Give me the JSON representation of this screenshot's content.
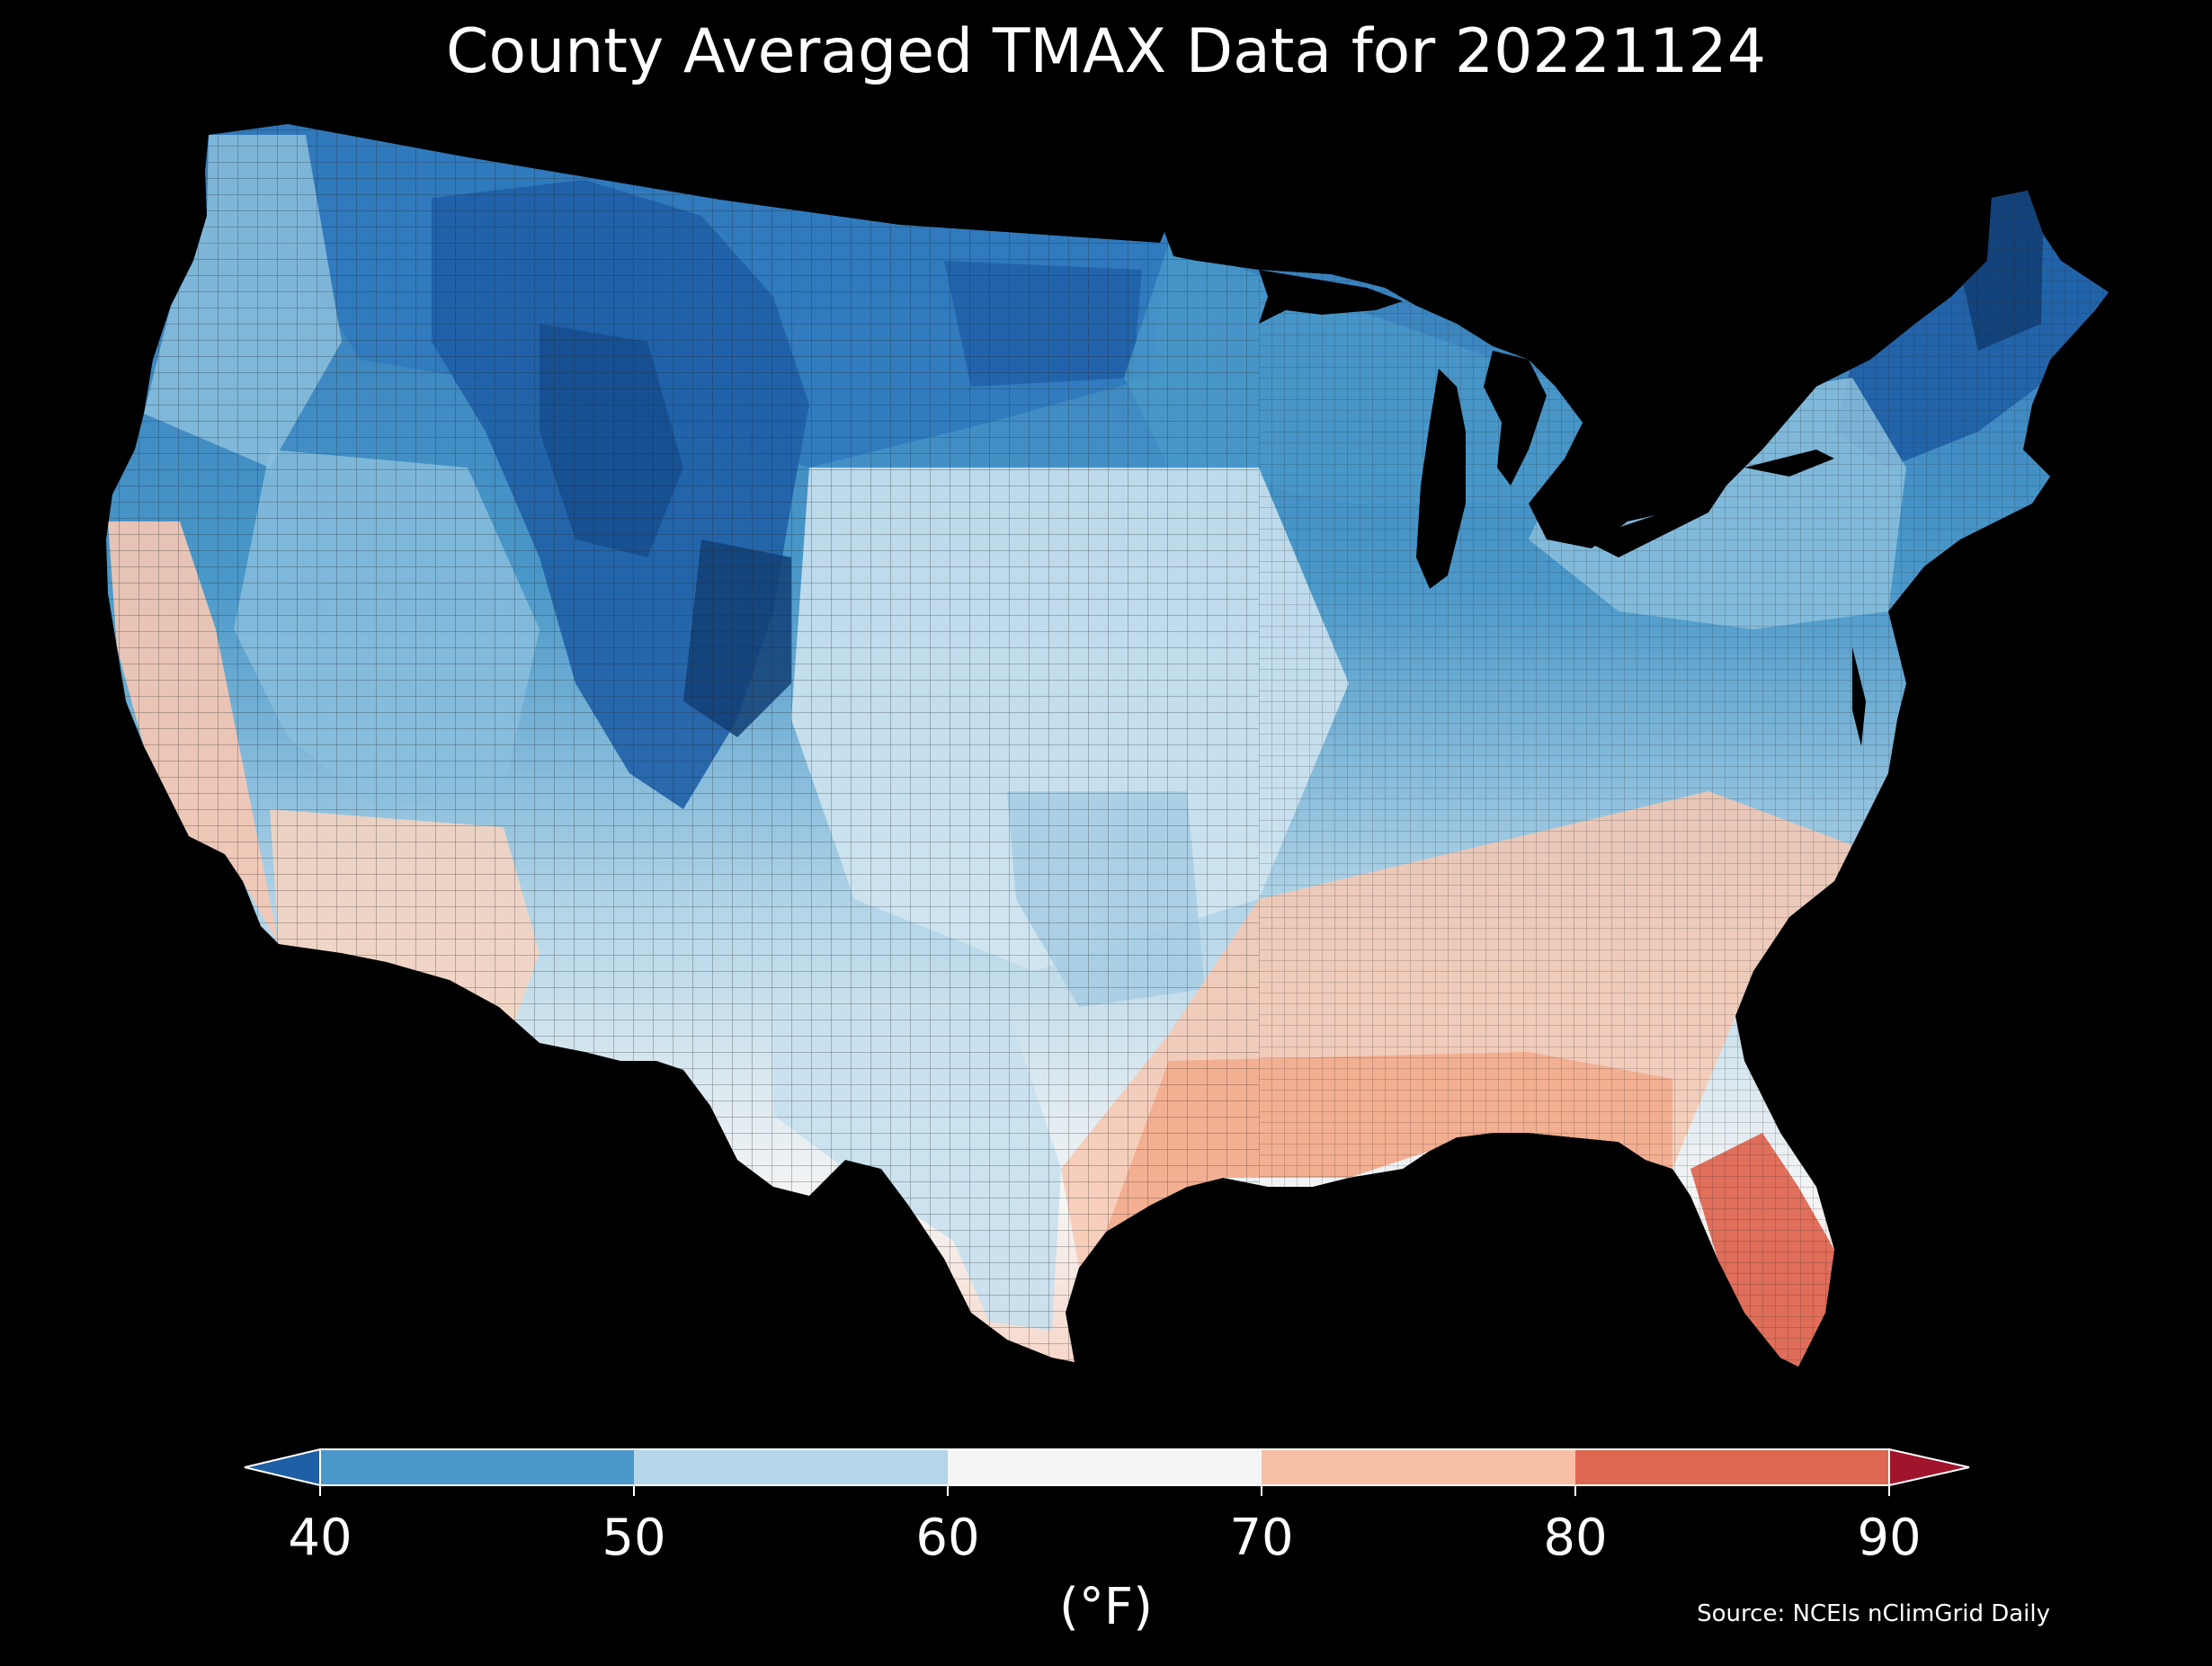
{
  "title": "County Averaged TMAX Data for 20221124",
  "colorbar": {
    "ticks": [
      "40",
      "50",
      "60",
      "70",
      "80",
      "90"
    ],
    "units": "(°F)",
    "bins": [
      {
        "from": null,
        "to": 40,
        "color": "#1f5fa6"
      },
      {
        "from": 40,
        "to": 50,
        "color": "#4a98c9"
      },
      {
        "from": 50,
        "to": 60,
        "color": "#b4d6e8"
      },
      {
        "from": 60,
        "to": 70,
        "color": "#f5f5f5"
      },
      {
        "from": 70,
        "to": 80,
        "color": "#f7bfa5"
      },
      {
        "from": 80,
        "to": 90,
        "color": "#de6752"
      },
      {
        "from": 90,
        "to": null,
        "color": "#a0152c"
      }
    ]
  },
  "source": "Source: NCEIs nClimGrid Daily",
  "colors": {
    "background": "#000000",
    "text": "#ffffff",
    "county_border": "#222222"
  }
}
